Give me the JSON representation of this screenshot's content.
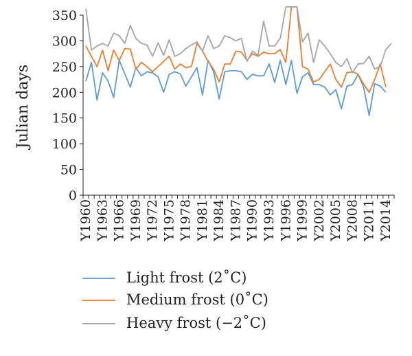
{
  "chart_data": {
    "type": "line",
    "title": "",
    "xlabel": "",
    "ylabel": "Julian days",
    "ylim": [
      0,
      350
    ],
    "yticks": [
      0,
      50,
      100,
      150,
      200,
      250,
      300,
      350
    ],
    "grid": false,
    "legend_position": "bottom",
    "x": [
      "Y1960",
      "Y1961",
      "Y1962",
      "Y1963",
      "Y1964",
      "Y1965",
      "Y1966",
      "Y1967",
      "Y1968",
      "Y1969",
      "Y1970",
      "Y1971",
      "Y1972",
      "Y1973",
      "Y1974",
      "Y1975",
      "Y1976",
      "Y1977",
      "Y1978",
      "Y1979",
      "Y1980",
      "Y1981",
      "Y1982",
      "Y1983",
      "Y1984",
      "Y1985",
      "Y1986",
      "Y1987",
      "Y1988",
      "Y1989",
      "Y1990",
      "Y1991",
      "Y1992",
      "Y1993",
      "Y1994",
      "Y1995",
      "Y1996",
      "Y1997",
      "Y1998",
      "Y1999",
      "Y2000",
      "Y2001",
      "Y2002",
      "Y2003",
      "Y2004",
      "Y2005",
      "Y2006",
      "Y2007",
      "Y2008",
      "Y2009",
      "Y2010",
      "Y2011",
      "Y2012",
      "Y2013",
      "Y2014",
      "Y2015"
    ],
    "xtick_labels": [
      "Y1960",
      "Y1963",
      "Y1966",
      "Y1969",
      "Y1972",
      "Y1975",
      "Y1978",
      "Y1981",
      "Y1984",
      "Y1987",
      "Y1990",
      "Y1993",
      "Y1996",
      "Y1999",
      "Y2002",
      "Y2005",
      "Y2008",
      "Y2011",
      "Y2014"
    ],
    "series": [
      {
        "name": "Light frost (2˚C)",
        "color": "#5b9bd5",
        "values": [
          222,
          258,
          185,
          238,
          222,
          190,
          262,
          236,
          210,
          248,
          232,
          240,
          238,
          230,
          200,
          235,
          240,
          236,
          212,
          230,
          248,
          195,
          262,
          240,
          187,
          240,
          242,
          242,
          240,
          225,
          235,
          232,
          232,
          255,
          219,
          262,
          215,
          262,
          198,
          230,
          238,
          215,
          215,
          210,
          195,
          205,
          168,
          212,
          215,
          235,
          210,
          155,
          217,
          212,
          200,
          null
        ]
      },
      {
        "name": "Medium frost (0˚C)",
        "color": "#ed7d31",
        "values": [
          290,
          270,
          250,
          282,
          242,
          282,
          262,
          285,
          284,
          245,
          258,
          250,
          240,
          250,
          260,
          270,
          245,
          255,
          248,
          250,
          295,
          280,
          260,
          245,
          220,
          255,
          255,
          280,
          278,
          262,
          275,
          270,
          278,
          275,
          275,
          283,
          258,
          366,
          366,
          250,
          245,
          220,
          225,
          240,
          255,
          225,
          210,
          238,
          240,
          235,
          216,
          200,
          225,
          255,
          210,
          null
        ]
      },
      {
        "name": "Heavy frost (−2˚C)",
        "color": "#a5a5a5",
        "values": [
          362,
          282,
          290,
          295,
          290,
          315,
          310,
          295,
          330,
          305,
          295,
          292,
          270,
          296,
          272,
          302,
          270,
          275,
          285,
          292,
          298,
          280,
          310,
          285,
          290,
          310,
          306,
          300,
          305,
          260,
          280,
          272,
          338,
          290,
          290,
          305,
          366,
          366,
          366,
          298,
          315,
          258,
          302,
          290,
          275,
          258,
          250,
          265,
          238,
          255,
          256,
          270,
          245,
          250,
          283,
          295
        ]
      }
    ]
  }
}
